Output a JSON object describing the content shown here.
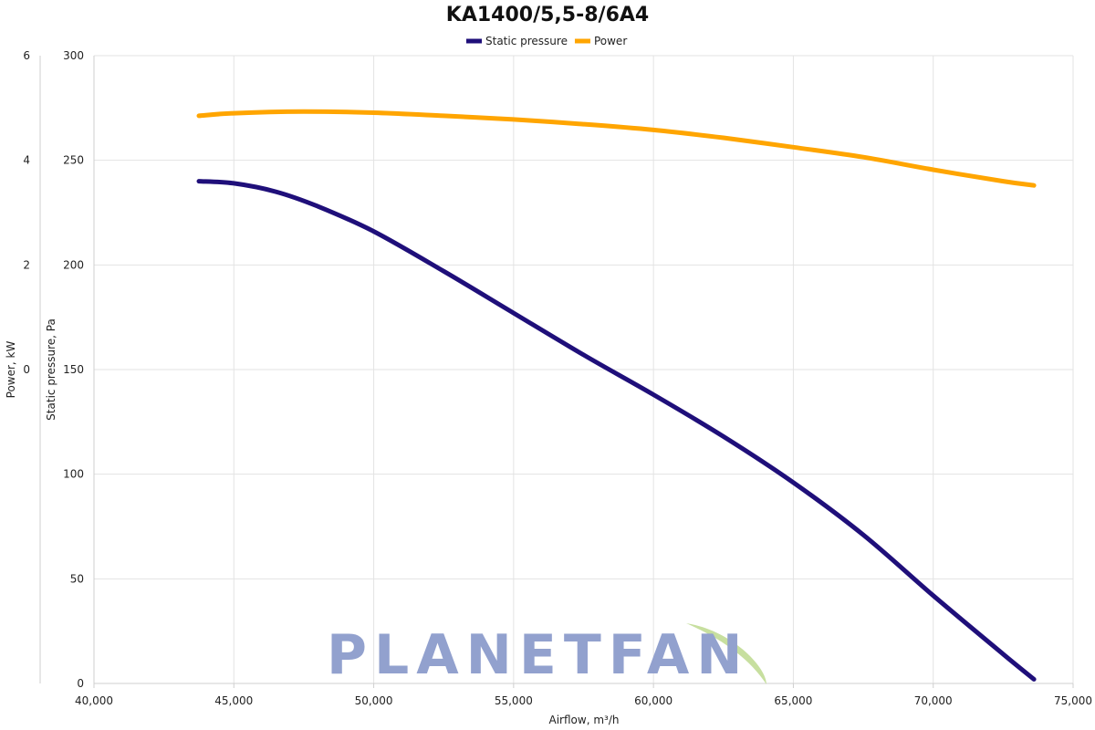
{
  "chart_data": {
    "type": "line",
    "title": "KA1400/5,5-8/6A4",
    "xlabel": "Airflow, m³/h",
    "ylabel_left_outer": "Power, kW",
    "ylabel_left_inner": "Static pressure, Pa",
    "xlim": [
      40000,
      75000
    ],
    "x_ticks": [
      "40,000",
      "45,000",
      "50,000",
      "55,000",
      "60,000",
      "65,000",
      "70,000",
      "75,000"
    ],
    "pressure_axis": {
      "range": [
        0,
        300
      ],
      "ticks": [
        "0",
        "50",
        "100",
        "150",
        "200",
        "250",
        "300"
      ]
    },
    "power_axis": {
      "range": [
        -6,
        6
      ],
      "ticks": [
        "0",
        "2",
        "4",
        "6"
      ],
      "tick_values": [
        0,
        2,
        4,
        6
      ]
    },
    "grid": true,
    "legend_position": "top-center",
    "series": [
      {
        "name": "Static pressure",
        "axis": "pressure",
        "color": "#1f0f7a",
        "points": [
          [
            43750,
            240
          ],
          [
            45000,
            239
          ],
          [
            46500,
            235
          ],
          [
            48000,
            228
          ],
          [
            50000,
            216
          ],
          [
            52500,
            197
          ],
          [
            55000,
            177
          ],
          [
            57500,
            157
          ],
          [
            60000,
            138
          ],
          [
            62500,
            118
          ],
          [
            65000,
            96
          ],
          [
            67500,
            71
          ],
          [
            70000,
            42
          ],
          [
            72500,
            14
          ],
          [
            73600,
            2
          ]
        ]
      },
      {
        "name": "Power",
        "axis": "power",
        "color": "#ffa500",
        "points": [
          [
            43750,
            4.85
          ],
          [
            45000,
            4.9
          ],
          [
            47500,
            4.93
          ],
          [
            50000,
            4.91
          ],
          [
            52500,
            4.85
          ],
          [
            55000,
            4.78
          ],
          [
            57500,
            4.69
          ],
          [
            60000,
            4.58
          ],
          [
            62500,
            4.43
          ],
          [
            65000,
            4.25
          ],
          [
            67500,
            4.06
          ],
          [
            70000,
            3.82
          ],
          [
            72500,
            3.6
          ],
          [
            73600,
            3.52
          ]
        ]
      }
    ]
  },
  "watermark": {
    "text": "PLANETFAN",
    "color": "#8d9ccc",
    "leaf_color": "#c5de9a"
  }
}
